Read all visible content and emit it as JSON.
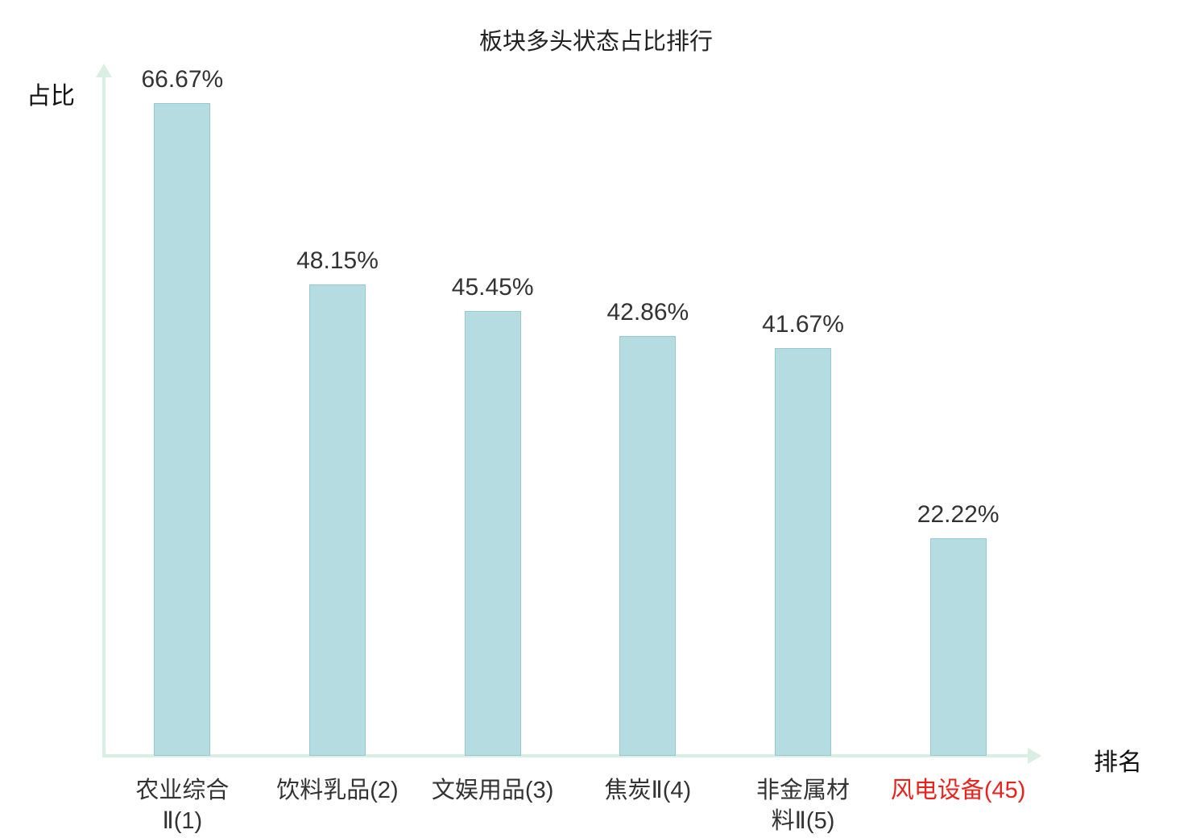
{
  "chart_data": {
    "type": "bar",
    "title": "板块多头状态占比排行",
    "xlabel": "排名",
    "ylabel": "占比",
    "categories": [
      "农业综合Ⅱ(1)",
      "饮料乳品(2)",
      "文娱用品(3)",
      "焦炭Ⅱ(4)",
      "非金属材料Ⅱ(5)",
      "风电设备(45)"
    ],
    "values": [
      66.67,
      48.15,
      45.45,
      42.86,
      41.67,
      22.22
    ],
    "value_labels": [
      "66.67%",
      "48.15%",
      "45.45%",
      "42.86%",
      "41.67%",
      "22.22%"
    ],
    "label_lines": [
      [
        "农业综合",
        "Ⅱ(1)"
      ],
      [
        "饮料乳品(2)"
      ],
      [
        "文娱用品(3)"
      ],
      [
        "焦炭Ⅱ(4)"
      ],
      [
        "非金属材",
        "料Ⅱ(5)"
      ],
      [
        "风电设备(45)"
      ]
    ],
    "label_colors": [
      "#333333",
      "#333333",
      "#333333",
      "#333333",
      "#333333",
      "#e8231d"
    ],
    "bar_color": "#b5dce1",
    "bar_border_color": "#97cad0",
    "axis_color": "#d9efe3",
    "value_label_color": "#333333",
    "ylim": [
      0,
      70
    ],
    "grid": false,
    "legend": false
  }
}
